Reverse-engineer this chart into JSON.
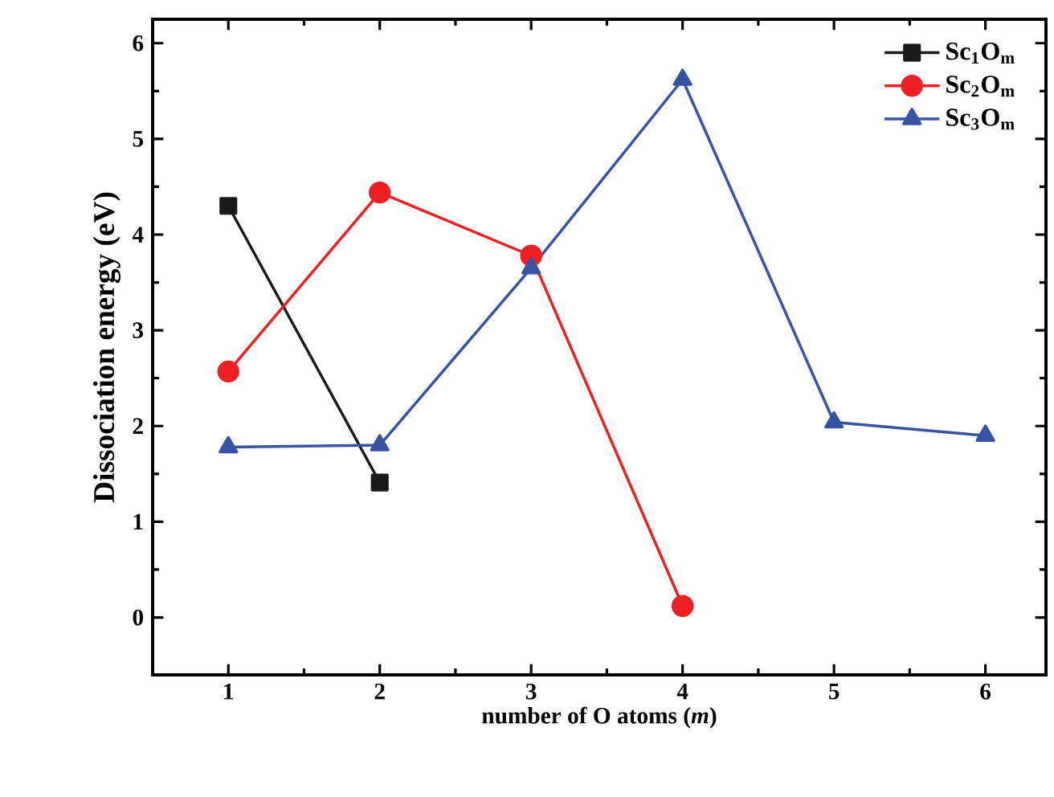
{
  "chart_data": {
    "type": "line",
    "xlabel": "number of O atoms (*m*)",
    "ylabel": "Dissociation energy  (eV)",
    "xlim": [
      0.5,
      6.4
    ],
    "ylim": [
      -0.6,
      6.25
    ],
    "xticks": [
      1,
      2,
      3,
      4,
      5,
      6
    ],
    "yticks": [
      0,
      1,
      2,
      3,
      4,
      5,
      6
    ],
    "grid": false,
    "legend": "top right",
    "line_style": "solid",
    "series": [
      {
        "name": "Sc$_{1}$O$_{m}$",
        "color": "#1a1a1a",
        "marker": "square",
        "x": [
          1,
          2
        ],
        "values": [
          4.3,
          1.41
        ]
      },
      {
        "name": "Sc$_{2}$O$_{m}$",
        "color": "#ee2024",
        "marker": "circle",
        "x": [
          1,
          2,
          3,
          4
        ],
        "values": [
          2.57,
          4.44,
          3.78,
          0.12
        ]
      },
      {
        "name": "Sc$_{3}$O$_{m}$",
        "color": "#3953a4",
        "marker": "triangle",
        "x": [
          1,
          2,
          3,
          4,
          5,
          6
        ],
        "values": [
          1.78,
          1.8,
          3.65,
          5.62,
          2.04,
          1.9
        ]
      }
    ]
  }
}
